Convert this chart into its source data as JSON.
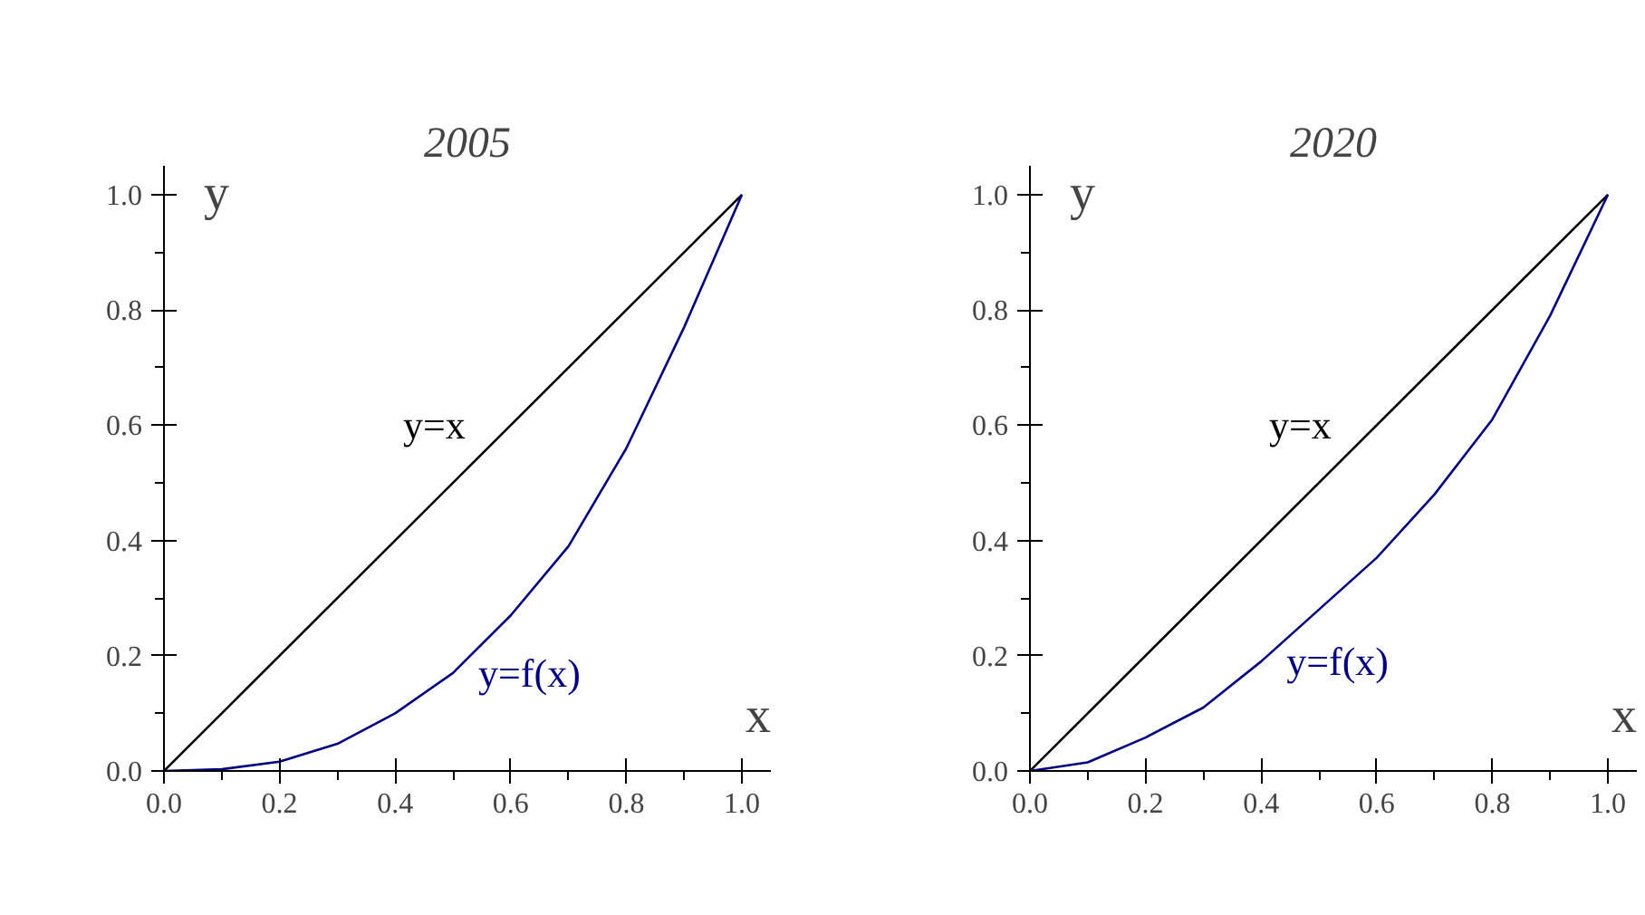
{
  "chart_data": [
    {
      "type": "line",
      "title": "2005",
      "xlabel": "x",
      "ylabel": "y",
      "xlim": [
        0,
        1.05
      ],
      "ylim": [
        0,
        1.05
      ],
      "grid": false,
      "xticks": [
        {
          "value": 0,
          "label": "0.0"
        },
        {
          "value": 0.1,
          "label": null
        },
        {
          "value": 0.2,
          "label": "0.2"
        },
        {
          "value": 0.3,
          "label": null
        },
        {
          "value": 0.4,
          "label": "0.4"
        },
        {
          "value": 0.5,
          "label": null
        },
        {
          "value": 0.6,
          "label": "0.6"
        },
        {
          "value": 0.7,
          "label": null
        },
        {
          "value": 0.8,
          "label": "0.8"
        },
        {
          "value": 0.9,
          "label": null
        },
        {
          "value": 1,
          "label": "1.0"
        }
      ],
      "yticks": [
        {
          "value": 0,
          "label": "0.0"
        },
        {
          "value": 0.1,
          "label": null
        },
        {
          "value": 0.2,
          "label": "0.2"
        },
        {
          "value": 0.3,
          "label": null
        },
        {
          "value": 0.4,
          "label": "0.4"
        },
        {
          "value": 0.5,
          "label": null
        },
        {
          "value": 0.6,
          "label": "0.6"
        },
        {
          "value": 0.7,
          "label": null
        },
        {
          "value": 0.8,
          "label": "0.8"
        },
        {
          "value": 0.9,
          "label": null
        },
        {
          "value": 1,
          "label": "1.0"
        }
      ],
      "series": [
        {
          "name": "y=x",
          "color": "#000000",
          "x": [
            0,
            1
          ],
          "values": [
            0,
            1
          ]
        },
        {
          "name": "y=f(x)",
          "color": "#000080",
          "x": [
            0,
            0.1,
            0.2,
            0.3,
            0.4,
            0.5,
            0.6,
            0.7,
            0.8,
            0.9,
            1
          ],
          "values": [
            0,
            0.003,
            0.016,
            0.047,
            0.1,
            0.17,
            0.27,
            0.39,
            0.56,
            0.77,
            1
          ]
        }
      ]
    },
    {
      "type": "line",
      "title": "2020",
      "xlabel": "x",
      "ylabel": "y",
      "xlim": [
        0,
        1.05
      ],
      "ylim": [
        0,
        1.05
      ],
      "grid": false,
      "xticks": [
        {
          "value": 0,
          "label": "0.0"
        },
        {
          "value": 0.1,
          "label": null
        },
        {
          "value": 0.2,
          "label": "0.2"
        },
        {
          "value": 0.3,
          "label": null
        },
        {
          "value": 0.4,
          "label": "0.4"
        },
        {
          "value": 0.5,
          "label": null
        },
        {
          "value": 0.6,
          "label": "0.6"
        },
        {
          "value": 0.7,
          "label": null
        },
        {
          "value": 0.8,
          "label": "0.8"
        },
        {
          "value": 0.9,
          "label": null
        },
        {
          "value": 1,
          "label": "1.0"
        }
      ],
      "yticks": [
        {
          "value": 0,
          "label": "0.0"
        },
        {
          "value": 0.1,
          "label": null
        },
        {
          "value": 0.2,
          "label": "0.2"
        },
        {
          "value": 0.3,
          "label": null
        },
        {
          "value": 0.4,
          "label": "0.4"
        },
        {
          "value": 0.5,
          "label": null
        },
        {
          "value": 0.6,
          "label": "0.6"
        },
        {
          "value": 0.7,
          "label": null
        },
        {
          "value": 0.8,
          "label": "0.8"
        },
        {
          "value": 0.9,
          "label": null
        },
        {
          "value": 1,
          "label": "1.0"
        }
      ],
      "series": [
        {
          "name": "y=x",
          "color": "#000000",
          "x": [
            0,
            1
          ],
          "values": [
            0,
            1
          ]
        },
        {
          "name": "y=f(x)",
          "color": "#000080",
          "x": [
            0,
            0.1,
            0.2,
            0.3,
            0.4,
            0.5,
            0.6,
            0.7,
            0.8,
            0.9,
            1
          ],
          "values": [
            0,
            0.015,
            0.058,
            0.11,
            0.19,
            0.28,
            0.37,
            0.48,
            0.61,
            0.79,
            1
          ]
        }
      ]
    }
  ]
}
